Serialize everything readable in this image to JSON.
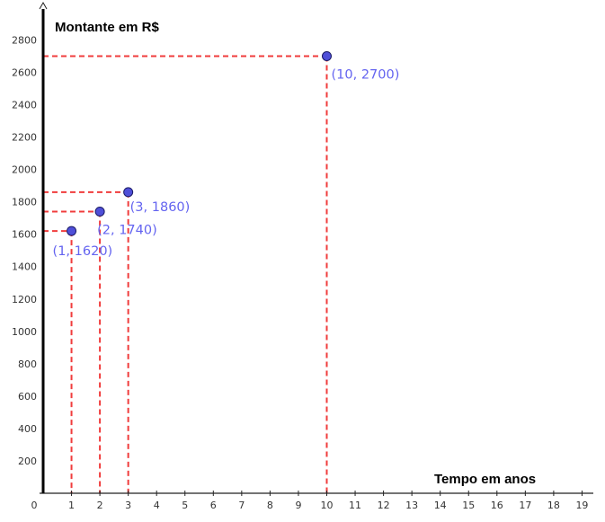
{
  "chart_data": {
    "type": "scatter",
    "title": "",
    "ylabel": "Montante em R$",
    "xlabel": "Tempo em anos",
    "xlim": [
      0,
      19
    ],
    "ylim": [
      0,
      2880
    ],
    "x_ticks": [
      0,
      1,
      2,
      3,
      4,
      5,
      6,
      7,
      8,
      9,
      10,
      11,
      12,
      13,
      14,
      15,
      16,
      17,
      18,
      19
    ],
    "y_ticks": [
      200,
      400,
      600,
      800,
      1000,
      1200,
      1400,
      1600,
      1800,
      2000,
      2200,
      2400,
      2600,
      2800
    ],
    "grid": false,
    "points": [
      {
        "x": 1,
        "y": 1620,
        "label": "(1, 1620)"
      },
      {
        "x": 2,
        "y": 1740,
        "label": "(2, 1740)"
      },
      {
        "x": 3,
        "y": 1860,
        "label": "(3, 1860)"
      },
      {
        "x": 10,
        "y": 2700,
        "label": "(10, 2700)"
      }
    ],
    "colors": {
      "point_fill": "#4f4fd8",
      "point_stroke": "#1a1a66",
      "label": "#6464f0",
      "guide": "#f03c3c",
      "axis": "#000000"
    }
  }
}
